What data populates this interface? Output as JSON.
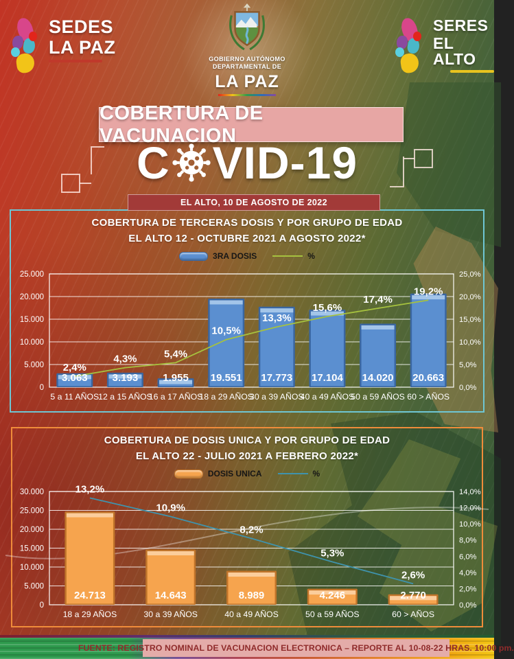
{
  "header": {
    "logo_left": {
      "line1": "SEDES",
      "line2": "LA PAZ"
    },
    "emblem": {
      "small1": "GOBIERNO AUTÓNOMO",
      "small2": "DEPARTAMENTAL DE",
      "big": "LA PAZ"
    },
    "logo_right": {
      "line1": "SERES",
      "line2": "EL ALTO"
    }
  },
  "title_banner": "COBERTURA DE VACUNACION",
  "covid_logo": {
    "prefix": "C",
    "suffix": "VID-19"
  },
  "date_banner": "EL ALTO, 10 DE AGOSTO DE 2022",
  "chart_data": [
    {
      "type": "bar",
      "title": "COBERTURA DE TERCERAS DOSIS Y POR GRUPO DE EDAD",
      "subtitle": "EL ALTO 12 - OCTUBRE 2021 A AGOSTO 2022*",
      "legend": {
        "bar_label": "3RA DOSIS",
        "line_label": "%"
      },
      "categories": [
        "5 a 11 AÑOS",
        "12 a 15 AÑOS",
        "16 a 17 AÑOS",
        "18 a 29 AÑOS",
        "30 a 39 AÑOS",
        "40 a 49 AÑOS",
        "50 a 59 AÑOS",
        "60 > AÑOS"
      ],
      "series": [
        {
          "name": "3RA DOSIS",
          "type": "bar",
          "values": [
            3063,
            3193,
            1955,
            19551,
            17773,
            17104,
            14020,
            20663
          ],
          "labels": [
            "3.063",
            "3.193",
            "1.955",
            "19.551",
            "17.773",
            "17.104",
            "14.020",
            "20.663"
          ]
        },
        {
          "name": "%",
          "type": "line",
          "values": [
            2.4,
            4.3,
            5.4,
            10.5,
            13.3,
            15.6,
            17.4,
            19.2
          ],
          "labels": [
            "2,4%",
            "4,3%",
            "5,4%",
            "10,5%",
            "13,3%",
            "15,6%",
            "17,4%",
            "19,2%"
          ]
        }
      ],
      "y_left": {
        "min": 0,
        "max": 25000,
        "step": 5000,
        "ticks": [
          "0",
          "5.000",
          "10.000",
          "15.000",
          "20.000",
          "25.000"
        ]
      },
      "y_right": {
        "min": 0,
        "max": 25,
        "step": 5,
        "ticks": [
          "0,0%",
          "5,0%",
          "10,0%",
          "15,0%",
          "20,0%",
          "25,0%"
        ]
      },
      "colors": {
        "bar": "#5b8fd0",
        "bar_dark": "#3a66a0",
        "bar_light": "#a8c8ea",
        "line": "#a6c23f",
        "panel_border": "#6ec6d4"
      },
      "bar_width_ratio": 0.72,
      "grid": true,
      "legend_position": "top"
    },
    {
      "type": "bar",
      "title": "COBERTURA DE DOSIS UNICA Y POR GRUPO DE EDAD",
      "subtitle": "EL ALTO 22 - JULIO 2021 A FEBRERO 2022*",
      "legend": {
        "bar_label": "DOSIS UNICA",
        "line_label": "%"
      },
      "categories": [
        "18 a 29 AÑOS",
        "30 a 39 AÑOS",
        "40 a 49 AÑOS",
        "50 a 59 AÑOS",
        "60 > AÑOS"
      ],
      "series": [
        {
          "name": "DOSIS UNICA",
          "type": "bar",
          "values": [
            24713,
            14643,
            8989,
            4246,
            2770
          ],
          "labels": [
            "24.713",
            "14.643",
            "8.989",
            "4.246",
            "2.770"
          ]
        },
        {
          "name": "%",
          "type": "line",
          "values": [
            13.2,
            10.9,
            8.2,
            5.3,
            2.6
          ],
          "labels": [
            "13,2%",
            "10,9%",
            "8,2%",
            "5,3%",
            "2,6%"
          ]
        }
      ],
      "y_left": {
        "min": 0,
        "max": 30000,
        "step": 5000,
        "ticks": [
          "0",
          "5.000",
          "10.000",
          "15.000",
          "20.000",
          "25.000",
          "30.000"
        ]
      },
      "y_right": {
        "min": 0,
        "max": 14,
        "step": 2,
        "ticks": [
          "0,0%",
          "2,0%",
          "4,0%",
          "6,0%",
          "8,0%",
          "10,0%",
          "12,0%",
          "14,0%"
        ]
      },
      "colors": {
        "bar": "#f6a44e",
        "bar_dark": "#c0742a",
        "bar_light": "#fbd0a0",
        "line": "#3f93ad",
        "panel_border": "#f08c3a"
      },
      "bar_width_ratio": 0.62,
      "grid": true,
      "legend_position": "top"
    }
  ],
  "footer": "FUENTE: REGISTRO NOMINAL DE VACUNACION ELECTRONICA – REPORTE AL 10-08-22 HRAS. 10:00 pm."
}
